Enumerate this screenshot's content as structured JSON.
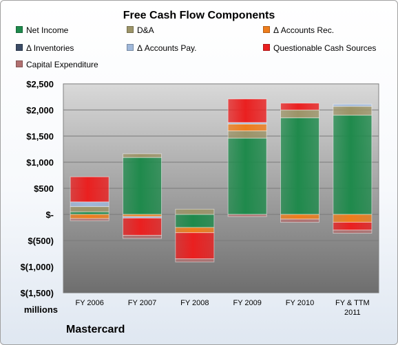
{
  "chart_data": {
    "type": "bar",
    "stacked": true,
    "title": "Free Cash Flow Components",
    "ylabel": "millions",
    "company": "Mastercard",
    "ylim": [
      -1500,
      2500
    ],
    "yticks": [
      2500,
      2000,
      1500,
      1000,
      500,
      0,
      -500,
      -1000,
      -1500
    ],
    "ytick_labels": [
      "$2,500",
      "$2,000",
      "$1,500",
      "$1,000",
      "$500",
      "$-",
      "$(500)",
      "$(1,000)",
      "$(1,500)"
    ],
    "categories": [
      "FY 2006",
      "FY 2007",
      "FY 2008",
      "FY 2009",
      "FY 2010",
      "FY & TTM 2011"
    ],
    "category_lines": [
      [
        "FY 2006"
      ],
      [
        "FY 2007"
      ],
      [
        "FY 2008"
      ],
      [
        "FY 2009"
      ],
      [
        "FY 2010"
      ],
      [
        "FY & TTM",
        "2011"
      ]
    ],
    "legend_position": "top",
    "series": [
      {
        "name": "Net Income",
        "color": "#1f8a4c",
        "values": [
          50,
          1090,
          -250,
          1460,
          1850,
          1900
        ]
      },
      {
        "name": "D&A",
        "color": "#9c9468",
        "values": [
          100,
          70,
          100,
          140,
          150,
          170
        ]
      },
      {
        "name": "Δ Accounts Rec.",
        "color": "#ee7d1c",
        "values": [
          -80,
          -40,
          -100,
          130,
          -90,
          -150
        ]
      },
      {
        "name": "Δ Inventories",
        "color": "#3b4c66",
        "values": [
          0,
          0,
          0,
          0,
          0,
          0
        ]
      },
      {
        "name": "Δ Accounts Pay.",
        "color": "#9fb8da",
        "values": [
          90,
          -30,
          0,
          30,
          0,
          40
        ]
      },
      {
        "name": "Questionable Cash Sources",
        "color": "#ea2020",
        "values": [
          480,
          -330,
          -500,
          450,
          130,
          -150
        ]
      },
      {
        "name": "Capital Expenditure",
        "color": "#b07070",
        "values": [
          -40,
          -60,
          -60,
          -40,
          -60,
          -60
        ]
      }
    ]
  }
}
